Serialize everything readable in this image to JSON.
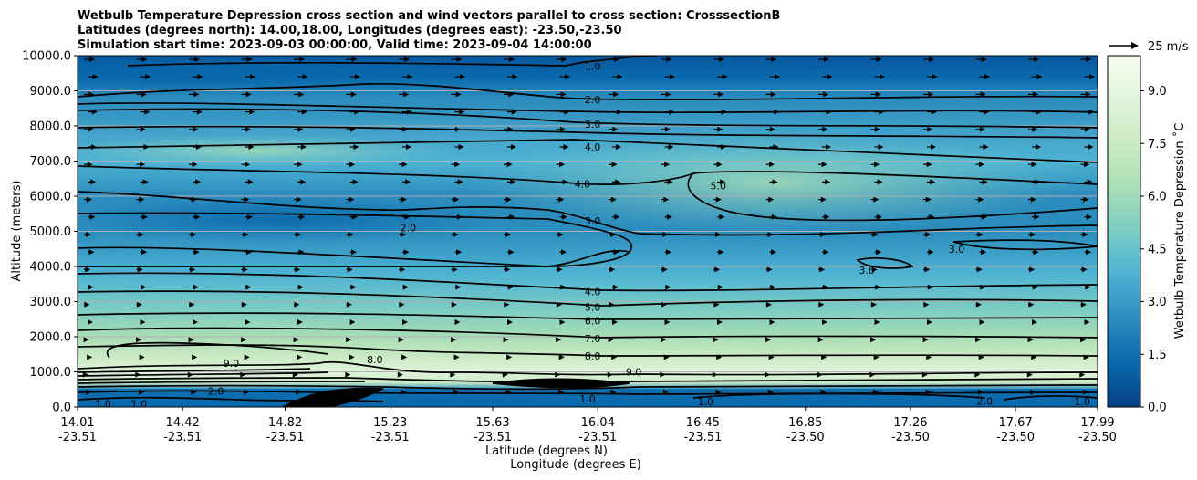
{
  "chart_data": {
    "type": "heatmap",
    "title_lines": [
      "Wetbulb Temperature Depression cross section and wind vectors parallel to cross section: CrosssectionB",
      "Latitudes (degrees north): 14.00,18.00, Longitudes (degrees east): -23.50,-23.50",
      "Simulation start time: 2023-09-03 00:00:00, Valid time: 2023-09-04 14:00:00"
    ],
    "ylabel": "Altitude (meters)",
    "xlabel_lat": "Latitude (degrees N)",
    "xlabel_lon": "Longitude (degrees E)",
    "ylim": [
      0,
      10000
    ],
    "y_ticks": [
      "0.0",
      "1000.0",
      "2000.0",
      "3000.0",
      "4000.0",
      "5000.0",
      "6000.0",
      "7000.0",
      "8000.0",
      "9000.0",
      "10000.0"
    ],
    "x_range": [
      14.01,
      17.99
    ],
    "x_ticks": [
      {
        "lat": "14.01",
        "lon": "-23.51"
      },
      {
        "lat": "14.42",
        "lon": "-23.51"
      },
      {
        "lat": "14.82",
        "lon": "-23.51"
      },
      {
        "lat": "15.23",
        "lon": "-23.51"
      },
      {
        "lat": "15.63",
        "lon": "-23.51"
      },
      {
        "lat": "16.04",
        "lon": "-23.51"
      },
      {
        "lat": "16.45",
        "lon": "-23.51"
      },
      {
        "lat": "16.85",
        "lon": "-23.50"
      },
      {
        "lat": "17.26",
        "lon": "-23.50"
      },
      {
        "lat": "17.67",
        "lon": "-23.50"
      },
      {
        "lat": "17.99",
        "lon": "-23.50"
      }
    ],
    "grid_y": true,
    "colorbar": {
      "label": "Wetbulb Temperature Depression ˚C",
      "min": 0.0,
      "max": 10.0,
      "ticks": [
        "0.0",
        "1.5",
        "3.0",
        "4.5",
        "6.0",
        "7.5",
        "9.0"
      ],
      "colors": [
        "#084081",
        "#0868ac",
        "#2b8cbe",
        "#4eb3d3",
        "#7bccc4",
        "#a8ddb5",
        "#ccebc5",
        "#e0f3db",
        "#f7fcf0"
      ]
    },
    "quiver_key": "25 m/s",
    "contour_labels": [
      {
        "text": "1.0",
        "x": 16.02,
        "y": 9700
      },
      {
        "text": "2.0",
        "x": 16.02,
        "y": 8750
      },
      {
        "text": "3.0",
        "x": 16.02,
        "y": 8050
      },
      {
        "text": "4.0",
        "x": 16.02,
        "y": 7400
      },
      {
        "text": "4.0",
        "x": 15.98,
        "y": 6350
      },
      {
        "text": "3.0",
        "x": 16.02,
        "y": 5300
      },
      {
        "text": "5.0",
        "x": 16.51,
        "y": 6300
      },
      {
        "text": "2.0",
        "x": 15.3,
        "y": 5100
      },
      {
        "text": "3.0",
        "x": 17.09,
        "y": 3900
      },
      {
        "text": "3.0",
        "x": 17.44,
        "y": 4500
      },
      {
        "text": "4.0",
        "x": 16.02,
        "y": 3280
      },
      {
        "text": "5.0",
        "x": 16.02,
        "y": 2850
      },
      {
        "text": "6.0",
        "x": 16.02,
        "y": 2450
      },
      {
        "text": "7.0",
        "x": 16.02,
        "y": 1950
      },
      {
        "text": "8.0",
        "x": 16.02,
        "y": 1450
      },
      {
        "text": "8.0",
        "x": 15.17,
        "y": 1350
      },
      {
        "text": "9.0",
        "x": 14.61,
        "y": 1250
      },
      {
        "text": "9.0",
        "x": 16.18,
        "y": 1000
      },
      {
        "text": "8.0",
        "x": 16.0,
        "y": 650
      },
      {
        "text": "1.0",
        "x": 16.0,
        "y": 230
      },
      {
        "text": "1.0",
        "x": 16.46,
        "y": 150
      },
      {
        "text": "2.0",
        "x": 17.55,
        "y": 170
      },
      {
        "text": "1.0",
        "x": 17.93,
        "y": 150
      },
      {
        "text": "1.0",
        "x": 14.11,
        "y": 90
      },
      {
        "text": "1.0",
        "x": 14.25,
        "y": 90
      },
      {
        "text": "2.0",
        "x": 14.55,
        "y": 450
      }
    ]
  }
}
